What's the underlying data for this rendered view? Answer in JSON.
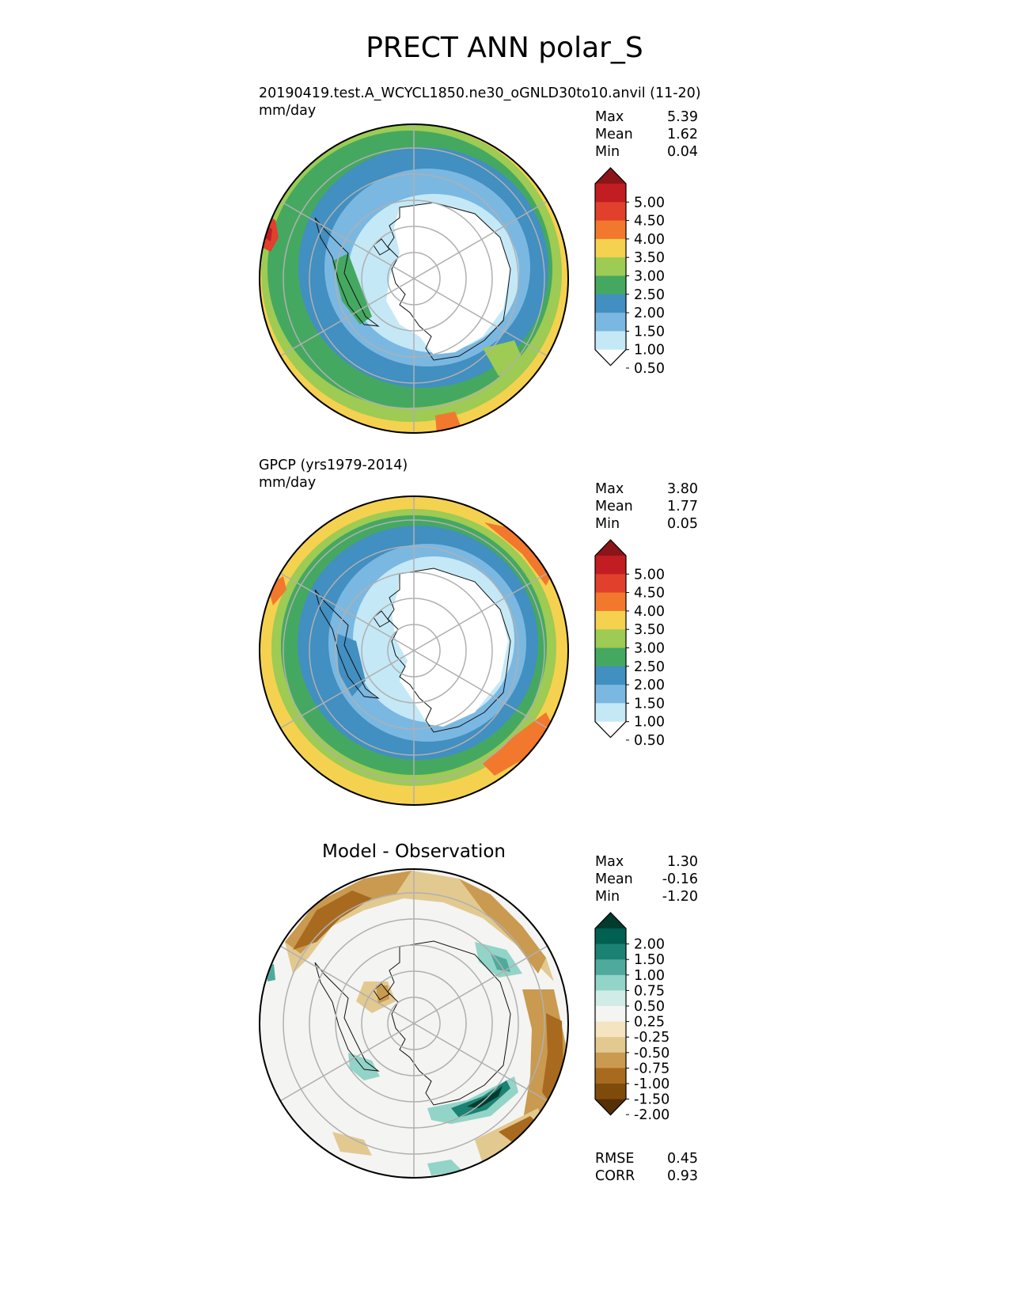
{
  "title": "PRECT ANN polar_S",
  "colors": {
    "prect": [
      "#ffffff",
      "#c4e8f6",
      "#7ab8e2",
      "#428fc1",
      "#45a861",
      "#9dcb53",
      "#f5d150",
      "#f2782e",
      "#e1402c",
      "#c11d22",
      "#8b1518"
    ],
    "diff": [
      "#553006",
      "#7f4b0b",
      "#a86a1e",
      "#c99a4f",
      "#e2c98f",
      "#f4e4c0",
      "#f4f4f2",
      "#d1ece7",
      "#92d4c8",
      "#4faa9d",
      "#1b8273",
      "#016052",
      "#003b2e"
    ]
  },
  "panels": [
    {
      "label_line1": "20190419.test.A_WCYCL1850.ne30_oGNLD30to10.anvil (11-20)",
      "label_line2": "mm/day",
      "center_title": "",
      "stats": [
        {
          "label": "Max",
          "value": "5.39"
        },
        {
          "label": "Mean",
          "value": "1.62"
        },
        {
          "label": "Min",
          "value": "0.04"
        }
      ],
      "colorbar_ticks": [
        "5.00",
        "4.50",
        "4.00",
        "3.50",
        "3.00",
        "2.50",
        "2.00",
        "1.50",
        "1.00",
        "0.50"
      ],
      "footer": []
    },
    {
      "label_line1": "GPCP (yrs1979-2014)",
      "label_line2": "mm/day",
      "center_title": "",
      "stats": [
        {
          "label": "Max",
          "value": "3.80"
        },
        {
          "label": "Mean",
          "value": "1.77"
        },
        {
          "label": "Min",
          "value": "0.05"
        }
      ],
      "colorbar_ticks": [
        "5.00",
        "4.50",
        "4.00",
        "3.50",
        "3.00",
        "2.50",
        "2.00",
        "1.50",
        "1.00",
        "0.50"
      ],
      "footer": []
    },
    {
      "label_line1": "",
      "label_line2": "",
      "center_title": "Model - Observation",
      "stats": [
        {
          "label": "Max",
          "value": "1.30"
        },
        {
          "label": "Mean",
          "value": "-0.16"
        },
        {
          "label": "Min",
          "value": "-1.20"
        }
      ],
      "colorbar_ticks": [
        "2.00",
        "1.50",
        "1.00",
        "0.75",
        "0.50",
        "0.25",
        "-0.25",
        "-0.50",
        "-0.75",
        "-1.00",
        "-1.50",
        "-2.00"
      ],
      "footer": [
        {
          "label": "RMSE",
          "value": "0.45"
        },
        {
          "label": "CORR",
          "value": "0.93"
        }
      ]
    }
  ]
}
